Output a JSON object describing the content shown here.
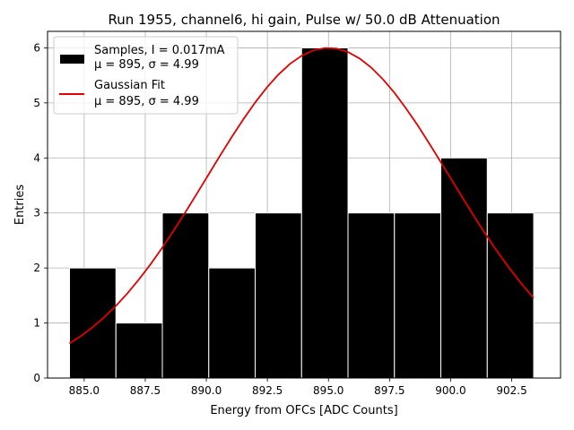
{
  "chart_data": {
    "type": "bar",
    "title": "Run 1955, channel6, hi gain, Pulse w/ 50.0 dB Attenuation",
    "xlabel": "Energy from OFCs [ADC Counts]",
    "ylabel": "Entries",
    "xlim": [
      883.5,
      904.5
    ],
    "ylim": [
      0,
      6.3
    ],
    "grid": true,
    "legend_placement": "top-left",
    "x_ticks": [
      {
        "value": 885.0,
        "label": "885.0"
      },
      {
        "value": 887.5,
        "label": "887.5"
      },
      {
        "value": 890.0,
        "label": "890.0"
      },
      {
        "value": 892.5,
        "label": "892.5"
      },
      {
        "value": 895.0,
        "label": "895.0"
      },
      {
        "value": 897.5,
        "label": "897.5"
      },
      {
        "value": 900.0,
        "label": "900.0"
      },
      {
        "value": 902.5,
        "label": "902.5"
      }
    ],
    "y_ticks": [
      {
        "value": 0,
        "label": "0"
      },
      {
        "value": 1,
        "label": "1"
      },
      {
        "value": 2,
        "label": "2"
      },
      {
        "value": 3,
        "label": "3"
      },
      {
        "value": 4,
        "label": "4"
      },
      {
        "value": 5,
        "label": "5"
      },
      {
        "value": 6,
        "label": "6"
      }
    ],
    "histogram": {
      "name": "Samples, I = 0.017mA",
      "stats": "μ = 895, σ = 4.99",
      "color": "#000000",
      "bins": [
        {
          "start": 884.4,
          "end": 886.3,
          "count": 2
        },
        {
          "start": 886.3,
          "end": 888.2,
          "count": 1
        },
        {
          "start": 888.2,
          "end": 890.1,
          "count": 3
        },
        {
          "start": 890.1,
          "end": 892.0,
          "count": 2
        },
        {
          "start": 892.0,
          "end": 893.9,
          "count": 3
        },
        {
          "start": 893.9,
          "end": 895.8,
          "count": 6
        },
        {
          "start": 895.8,
          "end": 897.7,
          "count": 3
        },
        {
          "start": 897.7,
          "end": 899.6,
          "count": 3
        },
        {
          "start": 899.6,
          "end": 901.5,
          "count": 4
        },
        {
          "start": 901.5,
          "end": 903.4,
          "count": 3
        }
      ]
    },
    "fit": {
      "name": "Gaussian Fit",
      "stats": "μ = 895, σ = 4.99",
      "color": "#e00000",
      "mu": 895,
      "sigma": 4.99,
      "amplitude": 6.0,
      "x_range": [
        884.4,
        903.4
      ]
    }
  }
}
